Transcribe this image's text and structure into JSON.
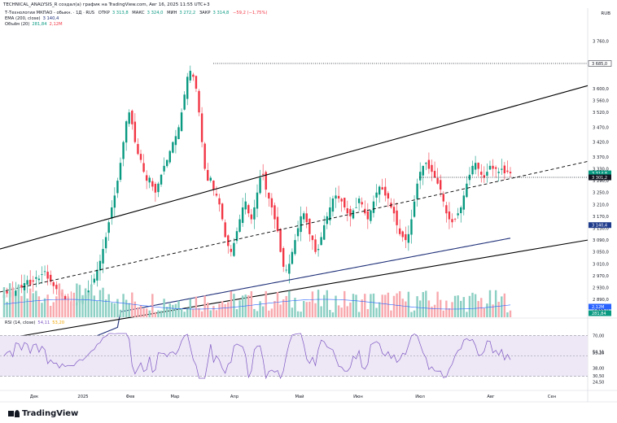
{
  "header": {
    "publish_line": "TECHNICAL_ANALYSIS_R создал(а) график на TradingView.com, Авг 16, 2025 11:55 UTC+3",
    "currency": "RUB"
  },
  "legend": {
    "symbol": "Т-Технологии МКПАО - обыкн. · 1Д · RUS",
    "open_label": "ОТКР",
    "open_value": "3 313,8",
    "high_label": "МАКС",
    "high_value": "3 324,0",
    "low_label": "МИН",
    "low_value": "3 272,2",
    "close_label": "ЗАКР",
    "close_value": "3 314,8",
    "change_value": "−59,2 (−1,75%)",
    "ema_label": "EMA (200, close)",
    "ema_value": "3 140,4",
    "volume_label": "Объём (20)",
    "volume_value": "281,84",
    "volume_ma_value": "2,12M",
    "rsi_label": "RSI (14, close)",
    "rsi_value": "54,11",
    "rsi_ma_value": "53,20"
  },
  "colors": {
    "up": "#089981",
    "down": "#f23645",
    "ema": "#1e2f78",
    "rsi": "#7e57c2",
    "volume_up": "#8ccfc3",
    "volume_down": "#f8a9ae",
    "rsi_band": "#ede7f6",
    "trendline": "#000000",
    "price_tag": "#131722",
    "ema_tag": "#1e3a8a"
  },
  "chart_data": [
    {
      "type": "candlestick",
      "title": "",
      "ylim": [
        2830,
        3800
      ],
      "y_ticks": [
        "3 760,0",
        "3 685,0",
        "3 600,0",
        "3 560,0",
        "3 520,0",
        "3 470,0",
        "3 420,0",
        "3 370,0",
        "3 330,0",
        "3 290,0",
        "3 250,0",
        "3 210,0",
        "3 170,0",
        "3 130,0",
        "3 090,0",
        "3 050,0",
        "3 010,0",
        "2 970,0",
        "2 930,0",
        "2 890,0",
        "2 855,0"
      ],
      "x_labels": [
        "Дек",
        "2025",
        "Фев",
        "Мар",
        "Апр",
        "Май",
        "Июн",
        "Июл",
        "Авг",
        "Сен"
      ],
      "price_tags": [
        {
          "label": "3 685,0",
          "value": 3685
        },
        {
          "label": "3 314,8",
          "value": 3314.8
        },
        {
          "label": "07:04:05",
          "value": 3304
        },
        {
          "label": "3 301,2",
          "value": 3301.2
        },
        {
          "label": "3 140,4",
          "value": 3140.4
        }
      ],
      "annotations": [
        {
          "kind": "horizontal_dotted",
          "value": 3685
        },
        {
          "kind": "horizontal_dotted",
          "value": 3301.2
        }
      ],
      "series": [
        {
          "name": "EMA (200, close)",
          "last_value": 3140.4
        }
      ]
    },
    {
      "type": "bar",
      "title": "",
      "price_tags": [
        {
          "label": "2,12M"
        },
        {
          "label": "281,84"
        }
      ]
    },
    {
      "type": "line",
      "title": "",
      "ylim": [
        20,
        80
      ],
      "y_ticks": [
        "70,00",
        "54,11",
        "53,20",
        "38,00",
        "30,50",
        "24,50"
      ],
      "bands": [
        70,
        30
      ],
      "series": [
        {
          "name": "RSI (14, close)",
          "last_value": 54.11
        },
        {
          "name": "MA",
          "last_value": 53.2
        }
      ]
    }
  ],
  "footer": {
    "brand": "TradingView"
  }
}
